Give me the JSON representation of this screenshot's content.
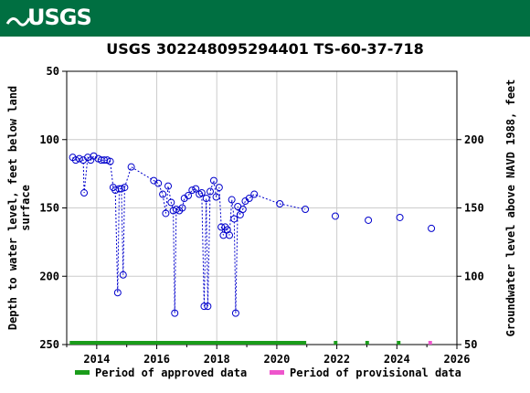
{
  "header": {
    "logo_text": "USGS",
    "brand_color": "#006f41"
  },
  "chart_data": {
    "type": "scatter",
    "title": "USGS 302248095294401 TS-60-37-718",
    "ylabel_left": "Depth to water level, feet below land surface",
    "ylabel_right": "Groundwater level above NAVD 1988, feet",
    "x_range": [
      2013.0,
      2026.0
    ],
    "y_range_left": [
      250,
      50
    ],
    "y_range_right": [
      50,
      250
    ],
    "x_ticks": [
      "2014",
      "2016",
      "2018",
      "2020",
      "2022",
      "2024",
      "2026"
    ],
    "y_ticks_left": [
      "50",
      "100",
      "150",
      "200",
      "250"
    ],
    "y_ticks_right": [
      "50",
      "100",
      "150",
      "200"
    ],
    "grid": true,
    "marker_color": "#0000cc",
    "series": [
      {
        "points": [
          [
            2013.2,
            113
          ],
          [
            2013.3,
            115
          ],
          [
            2013.42,
            114
          ],
          [
            2013.55,
            115
          ],
          [
            2013.58,
            139
          ],
          [
            2013.7,
            113
          ],
          [
            2013.8,
            115
          ],
          [
            2013.9,
            112
          ],
          [
            2014.05,
            114
          ],
          [
            2014.15,
            115
          ],
          [
            2014.25,
            115
          ],
          [
            2014.35,
            115
          ],
          [
            2014.45,
            116
          ],
          [
            2014.55,
            135
          ],
          [
            2014.62,
            137
          ],
          [
            2014.7,
            212
          ],
          [
            2014.75,
            136
          ],
          [
            2014.82,
            136
          ],
          [
            2014.88,
            199
          ],
          [
            2014.93,
            135
          ],
          [
            2015.15,
            120
          ],
          [
            2015.9,
            130
          ],
          [
            2016.05,
            132
          ],
          [
            2016.2,
            140
          ],
          [
            2016.3,
            154
          ],
          [
            2016.38,
            134
          ],
          [
            2016.48,
            146
          ],
          [
            2016.55,
            152
          ],
          [
            2016.6,
            227
          ],
          [
            2016.65,
            151
          ],
          [
            2016.75,
            152
          ],
          [
            2016.85,
            150
          ],
          [
            2016.92,
            143
          ],
          [
            2017.05,
            141
          ],
          [
            2017.18,
            137
          ],
          [
            2017.3,
            136
          ],
          [
            2017.42,
            140
          ],
          [
            2017.5,
            139
          ],
          [
            2017.58,
            222
          ],
          [
            2017.65,
            143
          ],
          [
            2017.7,
            222
          ],
          [
            2017.78,
            138
          ],
          [
            2017.9,
            130
          ],
          [
            2017.98,
            142
          ],
          [
            2018.08,
            135
          ],
          [
            2018.15,
            164
          ],
          [
            2018.22,
            170
          ],
          [
            2018.28,
            164
          ],
          [
            2018.35,
            166
          ],
          [
            2018.42,
            170
          ],
          [
            2018.5,
            144
          ],
          [
            2018.58,
            158
          ],
          [
            2018.63,
            227
          ],
          [
            2018.7,
            149
          ],
          [
            2018.78,
            155
          ],
          [
            2018.87,
            151
          ],
          [
            2018.95,
            145
          ],
          [
            2019.08,
            143
          ],
          [
            2019.25,
            140
          ],
          [
            2020.1,
            147
          ],
          [
            2020.95,
            151
          ],
          [
            2021.95,
            156
          ],
          [
            2023.05,
            159
          ],
          [
            2024.1,
            157
          ],
          [
            2025.15,
            165
          ]
        ],
        "connected_until": 2020.95
      }
    ],
    "legend": [
      {
        "label": "Period of approved data",
        "color": "#1a9c1a"
      },
      {
        "label": "Period of provisional data",
        "color": "#ee55cc"
      }
    ],
    "approved_periods": [
      [
        2013.1,
        2020.98
      ],
      [
        2021.9,
        2022.02
      ],
      [
        2022.95,
        2023.07
      ],
      [
        2024.0,
        2024.12
      ]
    ],
    "provisional_periods": [
      [
        2025.05,
        2025.17
      ]
    ]
  }
}
